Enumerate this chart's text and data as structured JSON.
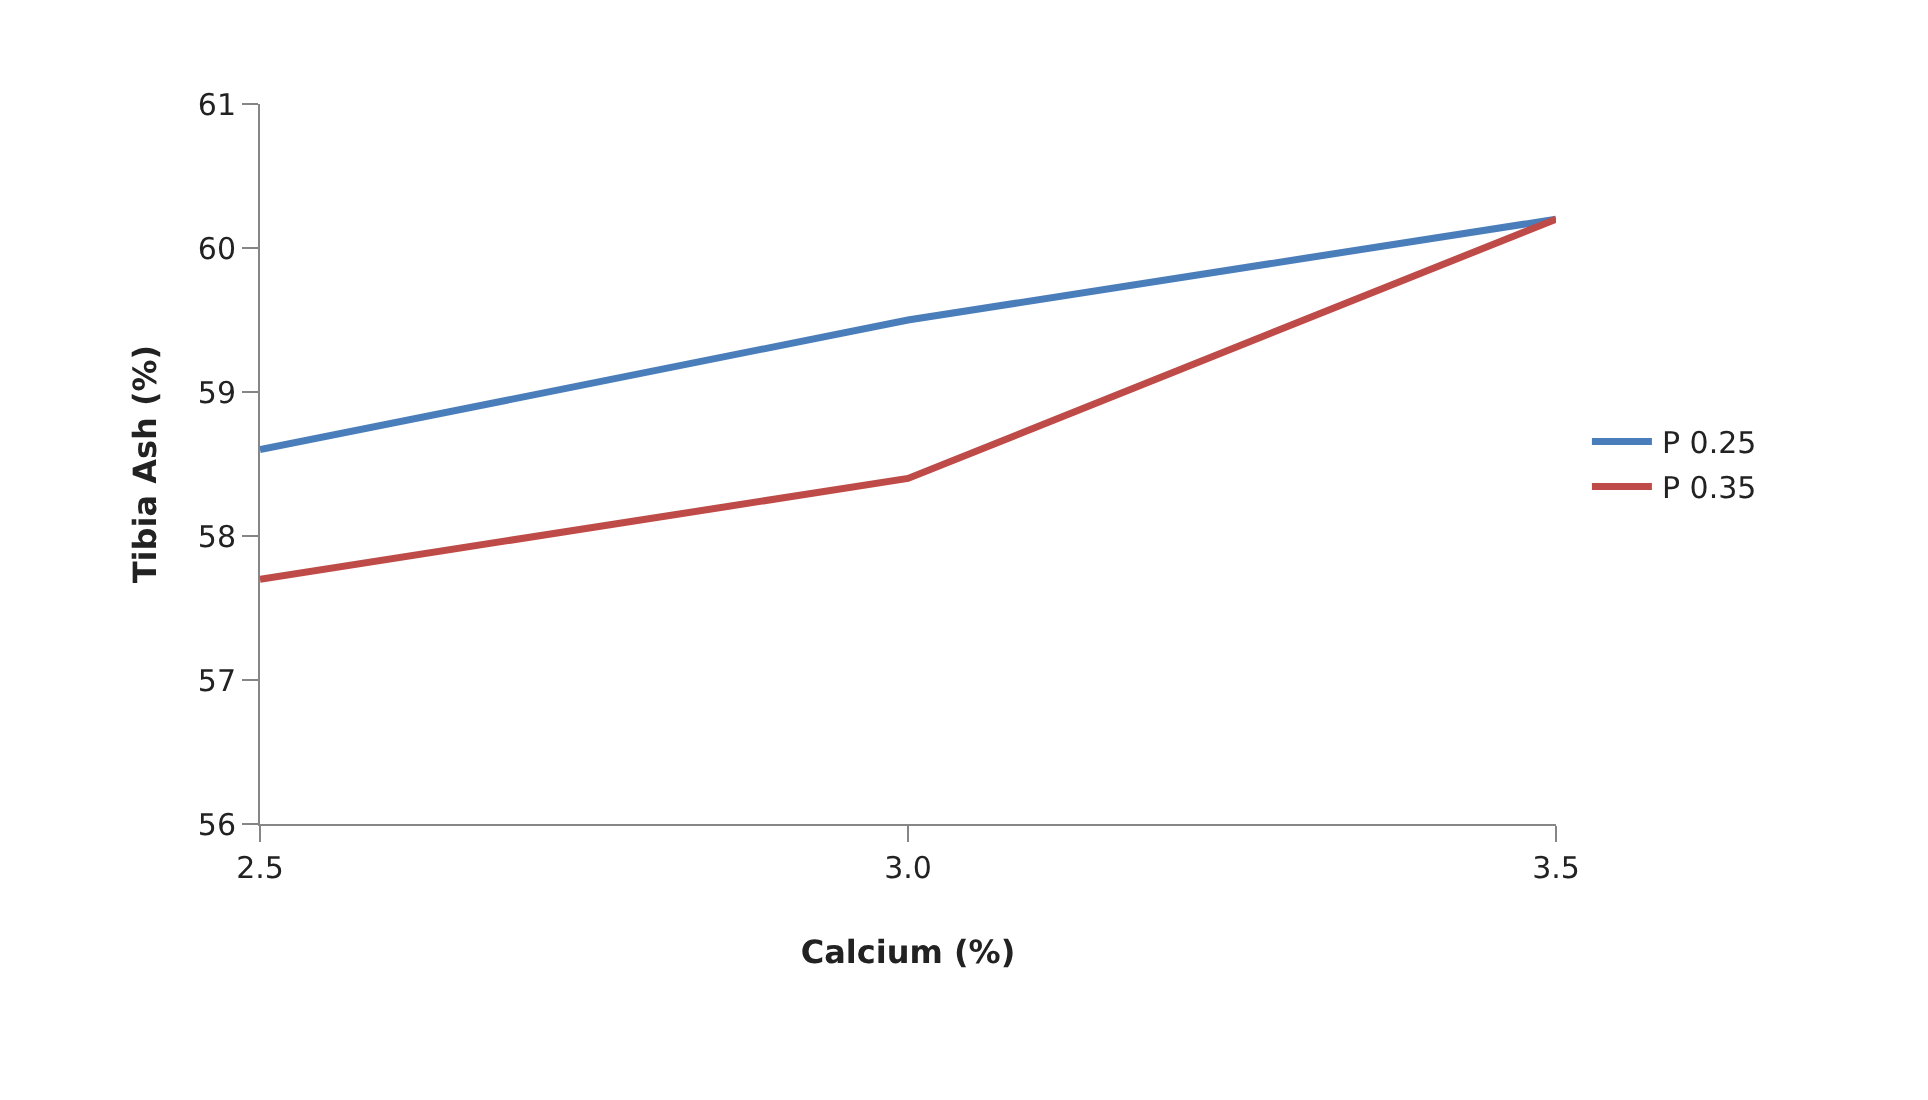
{
  "chart_data": {
    "type": "line",
    "xlabel": "Calcium (%)",
    "ylabel": "Tibia Ash (%)",
    "categories": [
      "2.5",
      "3.0",
      "3.5"
    ],
    "series": [
      {
        "name": "P 0.25",
        "color": "#4a7ebb",
        "values": [
          58.6,
          59.5,
          60.2
        ]
      },
      {
        "name": "P 0.35",
        "color": "#be4b48",
        "values": [
          57.7,
          58.4,
          60.2
        ]
      }
    ],
    "ylim": [
      56,
      61
    ],
    "yticks": [
      56,
      57,
      58,
      59,
      60,
      61
    ],
    "legend": "right",
    "marker": "none",
    "line_style": "solid"
  }
}
